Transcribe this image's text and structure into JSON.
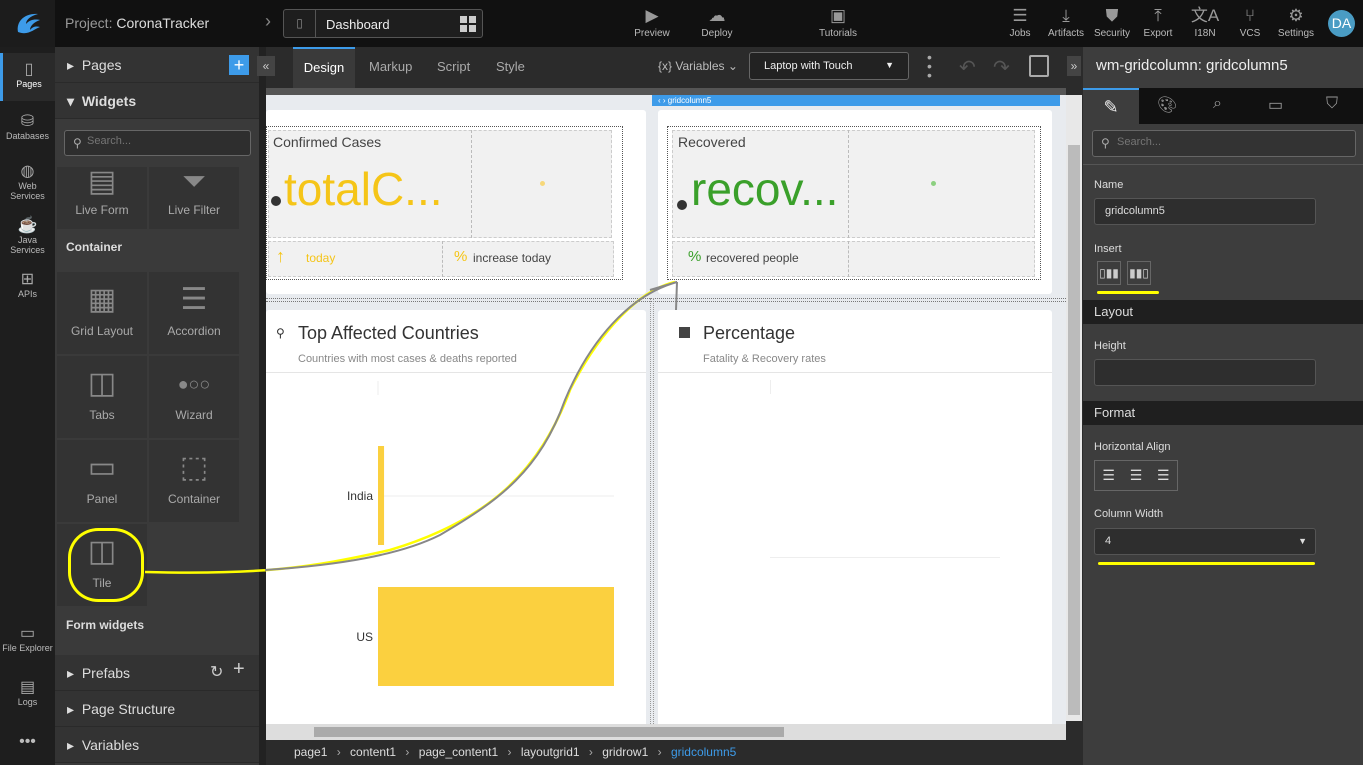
{
  "topbar": {
    "project_label": "Project:",
    "project_name": "CoronaTracker",
    "page": "Dashboard",
    "actions": [
      {
        "label": "Preview",
        "icon": "play-icon"
      },
      {
        "label": "Deploy",
        "icon": "cloud-upload-icon"
      },
      {
        "label": "Tutorials",
        "icon": "youtube-icon"
      },
      {
        "label": "Jobs",
        "icon": "server-icon"
      },
      {
        "label": "Artifacts",
        "icon": "download-icon"
      },
      {
        "label": "Security",
        "icon": "shield-icon"
      },
      {
        "label": "Export",
        "icon": "upload-icon"
      },
      {
        "label": "I18N",
        "icon": "translate-icon"
      },
      {
        "label": "VCS",
        "icon": "branch-icon"
      },
      {
        "label": "Settings",
        "icon": "gear-icon"
      }
    ],
    "avatar": "DA"
  },
  "rail": [
    {
      "label": "Pages"
    },
    {
      "label": "Databases"
    },
    {
      "label": "Web Services"
    },
    {
      "label": "Java Services"
    },
    {
      "label": "APIs"
    },
    {
      "label": "File Explorer"
    },
    {
      "label": "Logs"
    }
  ],
  "widgets_panel": {
    "pages": "Pages",
    "widgets": "Widgets",
    "search_placeholder": "Search...",
    "tiles_top": [
      "Live Form",
      "Live Filter"
    ],
    "group_container": "Container",
    "tiles": [
      "Grid Layout",
      "Accordion",
      "Tabs",
      "Wizard",
      "Panel",
      "Container",
      "Tile"
    ],
    "group_form": "Form widgets",
    "prefabs": "Prefabs",
    "page_structure": "Page Structure",
    "variables": "Variables"
  },
  "editor": {
    "tabs": [
      "Design",
      "Markup",
      "Script",
      "Style"
    ],
    "active_tab": "Design",
    "variables": "Variables",
    "device": "Laptop with Touch",
    "selected_tag": "gridcolumn5"
  },
  "canvas": {
    "confirmed_title": "Confirmed Cases",
    "confirmed_value": "totalC...",
    "today": "today",
    "increase_today": "increase today",
    "recovered_title": "Recovered",
    "recovered_value": "recov...",
    "recovered_people": "recovered people",
    "top_title": "Top Affected Countries",
    "top_sub": "Countries with most cases & deaths reported",
    "pct_title": "Percentage",
    "pct_sub": "Fatality & Recovery rates",
    "colors": {
      "confirmed": "#f5c518",
      "recovered": "#3aa02a",
      "bar": "#fbd03f"
    }
  },
  "chart_data": {
    "type": "bar",
    "orientation": "horizontal",
    "categories": [
      "India",
      "US"
    ],
    "values": [
      1,
      39
    ],
    "grid": true
  },
  "breadcrumb": [
    "page1",
    "content1",
    "page_content1",
    "layoutgrid1",
    "gridrow1",
    "gridcolumn5"
  ],
  "props": {
    "title": "wm-gridcolumn: gridcolumn5",
    "search_placeholder": "Search...",
    "name_label": "Name",
    "name_value": "gridcolumn5",
    "insert_label": "Insert",
    "layout": "Layout",
    "height_label": "Height",
    "format": "Format",
    "halign_label": "Horizontal Align",
    "colwidth_label": "Column Width",
    "colwidth_value": "4"
  }
}
